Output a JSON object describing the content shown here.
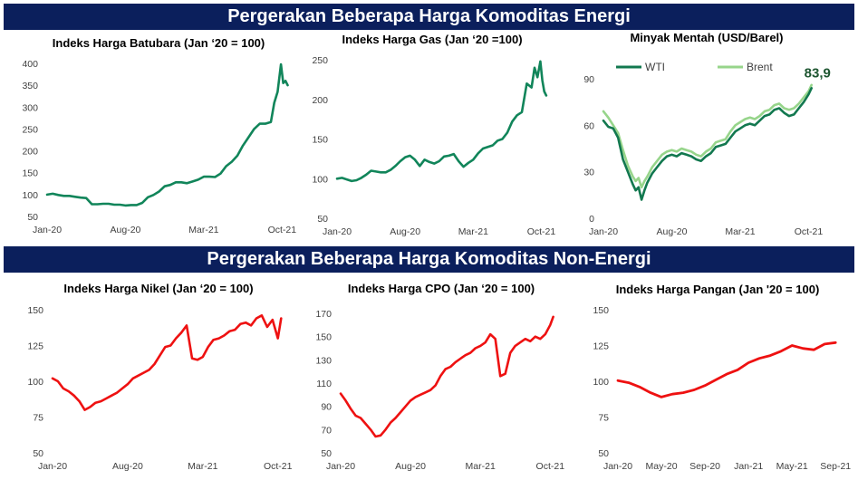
{
  "banners": {
    "energy": "Pergerakan Beberapa Harga Komoditas Energi",
    "non_energy": "Pergerakan Beberapa Harga Komoditas Non-Energi"
  },
  "colors": {
    "banner_bg": "#0b1f5c",
    "energy_green": "#11855a",
    "wti": "#12784f",
    "brent": "#97d58b",
    "non_energy_red": "#ee1111",
    "annotation": "#1e5631"
  },
  "chart_data": [
    {
      "id": "coal",
      "type": "line",
      "title": "Indeks Harga Batubara (Jan ‘20 = 100)",
      "xlabel": "",
      "ylabel": "",
      "x_range": [
        0,
        21.7
      ],
      "x_ticks": [
        {
          "label": "Jan-20",
          "x": 0
        },
        {
          "label": "Aug-20",
          "x": 7
        },
        {
          "label": "Mar-21",
          "x": 14
        },
        {
          "label": "Oct-21",
          "x": 21
        }
      ],
      "ylim": [
        50,
        400
      ],
      "y_ticks": [
        50,
        100,
        150,
        200,
        250,
        300,
        350,
        400
      ],
      "grid": false,
      "series": [
        {
          "color": "#11855a",
          "x": [
            0,
            0.5,
            1,
            1.5,
            2,
            2.5,
            3,
            3.5,
            4,
            4.5,
            5,
            5.5,
            6,
            6.5,
            7,
            7.5,
            8,
            8.5,
            9,
            9.5,
            10,
            10.5,
            11,
            11.5,
            12,
            12.5,
            13,
            13.5,
            14,
            14.5,
            15,
            15.5,
            16,
            16.5,
            17,
            17.5,
            18,
            18.5,
            19,
            19.5,
            20,
            20.3,
            20.6,
            20.9,
            21.1,
            21.3,
            21.5
          ],
          "y": [
            100,
            102,
            99,
            97,
            97,
            95,
            93,
            92,
            78,
            78,
            79,
            79,
            77,
            77,
            75,
            76,
            76,
            81,
            94,
            99,
            107,
            119,
            122,
            128,
            128,
            126,
            130,
            134,
            141,
            141,
            140,
            148,
            165,
            175,
            189,
            212,
            231,
            250,
            262,
            262,
            266,
            310,
            335,
            398,
            355,
            360,
            350
          ]
        }
      ]
    },
    {
      "id": "gas",
      "type": "line",
      "title": "Indeks Harga Gas (Jan ‘20 =100)",
      "xlabel": "",
      "ylabel": "",
      "x_range": [
        0,
        21.7
      ],
      "x_ticks": [
        {
          "label": "Jan-20",
          "x": 0
        },
        {
          "label": "Aug-20",
          "x": 7
        },
        {
          "label": "Mar-21",
          "x": 14
        },
        {
          "label": "Oct-21",
          "x": 21
        }
      ],
      "ylim": [
        50,
        250
      ],
      "y_ticks": [
        50,
        100,
        150,
        200,
        250
      ],
      "grid": false,
      "series": [
        {
          "color": "#11855a",
          "x": [
            0,
            0.5,
            1,
            1.5,
            2,
            2.5,
            3,
            3.5,
            4,
            4.5,
            5,
            5.5,
            6,
            6.5,
            7,
            7.5,
            8,
            8.5,
            9,
            9.5,
            10,
            10.5,
            11,
            11.5,
            12,
            12.5,
            13,
            13.5,
            14,
            14.5,
            15,
            15.5,
            16,
            16.5,
            17,
            17.5,
            18,
            18.5,
            19,
            19.5,
            20,
            20.3,
            20.6,
            20.9,
            21.1,
            21.3,
            21.5
          ],
          "y": [
            100,
            101,
            99,
            97,
            98,
            101,
            105,
            110,
            109,
            108,
            108,
            111,
            116,
            122,
            127,
            129,
            124,
            116,
            124,
            121,
            119,
            122,
            128,
            129,
            131,
            122,
            115,
            120,
            124,
            132,
            138,
            140,
            142,
            148,
            150,
            158,
            172,
            180,
            184,
            220,
            215,
            240,
            228,
            248,
            224,
            210,
            205
          ]
        }
      ]
    },
    {
      "id": "oil",
      "type": "line",
      "title": "Minyak Mentah (USD/Barel)",
      "xlabel": "",
      "ylabel": "",
      "x_range": [
        0,
        21.7
      ],
      "x_ticks": [
        {
          "label": "Jan-20",
          "x": 0
        },
        {
          "label": "Aug-20",
          "x": 7
        },
        {
          "label": "Mar-21",
          "x": 14
        },
        {
          "label": "Oct-21",
          "x": 21
        }
      ],
      "ylim": [
        0,
        90
      ],
      "y_ticks": [
        0,
        30,
        60,
        90
      ],
      "grid": false,
      "legend": "top-left",
      "annotation": {
        "text": "83,9",
        "x": 21.3,
        "y": 83.9
      },
      "series": [
        {
          "name": "WTI",
          "color": "#12784f",
          "x": [
            0,
            0.5,
            1,
            1.5,
            2,
            2.5,
            3,
            3.3,
            3.6,
            3.9,
            4.2,
            4.5,
            5,
            5.5,
            6,
            6.5,
            7,
            7.5,
            8,
            8.5,
            9,
            9.5,
            10,
            10.5,
            11,
            11.5,
            12,
            12.5,
            13,
            13.5,
            14,
            14.5,
            15,
            15.5,
            16,
            16.5,
            17,
            17.5,
            18,
            18.5,
            19,
            19.5,
            20,
            20.5,
            21,
            21.3
          ],
          "y": [
            63,
            59,
            58,
            52,
            38,
            30,
            22,
            18,
            20,
            12,
            18,
            23,
            29,
            33,
            37,
            40,
            41,
            40,
            42,
            41,
            40,
            38,
            37,
            40,
            42,
            46,
            47,
            48,
            52,
            56,
            58,
            60,
            61,
            60,
            63,
            66,
            67,
            70,
            71,
            68,
            66,
            67,
            71,
            75,
            80,
            84
          ]
        },
        {
          "name": "Brent",
          "color": "#97d58b",
          "x": [
            0,
            0.5,
            1,
            1.5,
            2,
            2.5,
            3,
            3.3,
            3.6,
            3.9,
            4.2,
            4.5,
            5,
            5.5,
            6,
            6.5,
            7,
            7.5,
            8,
            8.5,
            9,
            9.5,
            10,
            10.5,
            11,
            11.5,
            12,
            12.5,
            13,
            13.5,
            14,
            14.5,
            15,
            15.5,
            16,
            16.5,
            17,
            17.5,
            18,
            18.5,
            19,
            19.5,
            20,
            20.5,
            21,
            21.3
          ],
          "y": [
            69,
            65,
            60,
            55,
            44,
            34,
            27,
            24,
            26,
            20,
            24,
            27,
            33,
            37,
            41,
            43,
            44,
            43,
            45,
            44,
            43,
            41,
            40,
            43,
            45,
            49,
            50,
            51,
            56,
            60,
            62,
            64,
            65,
            64,
            66,
            69,
            70,
            73,
            74,
            71,
            70,
            71,
            74,
            78,
            82,
            86
          ]
        }
      ]
    },
    {
      "id": "nickel",
      "type": "line",
      "title": "Indeks Harga Nikel (Jan ‘20 = 100)",
      "xlabel": "",
      "ylabel": "",
      "x_range": [
        0,
        21.7
      ],
      "x_ticks": [
        {
          "label": "Jan-20",
          "x": 0
        },
        {
          "label": "Aug-20",
          "x": 7
        },
        {
          "label": "Mar-21",
          "x": 14
        },
        {
          "label": "Oct-21",
          "x": 21
        }
      ],
      "ylim": [
        50,
        150
      ],
      "y_ticks": [
        50,
        75,
        100,
        125,
        150
      ],
      "grid": false,
      "series": [
        {
          "color": "#ee1111",
          "x": [
            0,
            0.5,
            1,
            1.5,
            2,
            2.5,
            3,
            3.5,
            4,
            4.5,
            5,
            5.5,
            6,
            6.5,
            7,
            7.5,
            8,
            8.5,
            9,
            9.5,
            10,
            10.5,
            11,
            11.5,
            12,
            12.5,
            13,
            13.5,
            14,
            14.5,
            15,
            15.5,
            16,
            16.5,
            17,
            17.5,
            18,
            18.5,
            19,
            19.5,
            20,
            20.5,
            21,
            21.3
          ],
          "y": [
            102,
            100,
            95,
            93,
            90,
            86,
            80,
            82,
            85,
            86,
            88,
            90,
            92,
            95,
            98,
            102,
            104,
            106,
            108,
            112,
            118,
            124,
            125,
            130,
            134,
            139,
            116,
            115,
            117,
            124,
            129,
            130,
            132,
            135,
            136,
            140,
            141,
            139,
            144,
            146,
            138,
            143,
            130,
            144
          ]
        }
      ]
    },
    {
      "id": "cpo",
      "type": "line",
      "title": "Indeks Harga CPO (Jan ‘20 = 100)",
      "xlabel": "",
      "ylabel": "",
      "x_range": [
        0,
        21.7
      ],
      "x_ticks": [
        {
          "label": "Jan-20",
          "x": 0
        },
        {
          "label": "Aug-20",
          "x": 7
        },
        {
          "label": "Mar-21",
          "x": 14
        },
        {
          "label": "Oct-21",
          "x": 21
        }
      ],
      "ylim": [
        50,
        170
      ],
      "y_ticks": [
        50,
        70,
        90,
        110,
        130,
        150,
        170
      ],
      "grid": false,
      "series": [
        {
          "color": "#ee1111",
          "x": [
            0,
            0.5,
            1,
            1.5,
            2,
            2.5,
            3,
            3.5,
            4,
            4.5,
            5,
            5.5,
            6,
            6.5,
            7,
            7.5,
            8,
            8.5,
            9,
            9.5,
            10,
            10.5,
            11,
            11.5,
            12,
            12.5,
            13,
            13.5,
            14,
            14.5,
            15,
            15.5,
            16,
            16.5,
            17,
            17.5,
            18,
            18.5,
            19,
            19.5,
            20,
            20.5,
            21,
            21.3
          ],
          "y": [
            101,
            95,
            88,
            82,
            80,
            75,
            70,
            64,
            65,
            70,
            76,
            80,
            85,
            90,
            95,
            98,
            100,
            102,
            104,
            108,
            116,
            122,
            124,
            128,
            131,
            134,
            136,
            140,
            142,
            145,
            152,
            148,
            116,
            118,
            136,
            142,
            145,
            148,
            146,
            150,
            148,
            152,
            160,
            167
          ]
        }
      ]
    },
    {
      "id": "food",
      "type": "line",
      "title": "Indeks Harga Pangan (Jan '20 = 100)",
      "xlabel": "",
      "ylabel": "",
      "x_range": [
        0,
        20.4
      ],
      "x_ticks": [
        {
          "label": "Jan-20",
          "x": 0
        },
        {
          "label": "May-20",
          "x": 4
        },
        {
          "label": "Sep-20",
          "x": 8
        },
        {
          "label": "Jan-21",
          "x": 12
        },
        {
          "label": "May-21",
          "x": 16
        },
        {
          "label": "Sep-21",
          "x": 20
        }
      ],
      "ylim": [
        50,
        150
      ],
      "y_ticks": [
        50,
        75,
        100,
        125,
        150
      ],
      "grid": false,
      "series": [
        {
          "color": "#ee1111",
          "x": [
            0,
            1,
            2,
            3,
            4,
            5,
            6,
            7,
            8,
            9,
            10,
            11,
            12,
            13,
            14,
            15,
            16,
            17,
            18,
            19,
            20
          ],
          "y": [
            100.5,
            99,
            96,
            92,
            89,
            91,
            92,
            94,
            97,
            101,
            105,
            108,
            113,
            116,
            118,
            121,
            125,
            123,
            122,
            126,
            127
          ]
        }
      ]
    }
  ]
}
